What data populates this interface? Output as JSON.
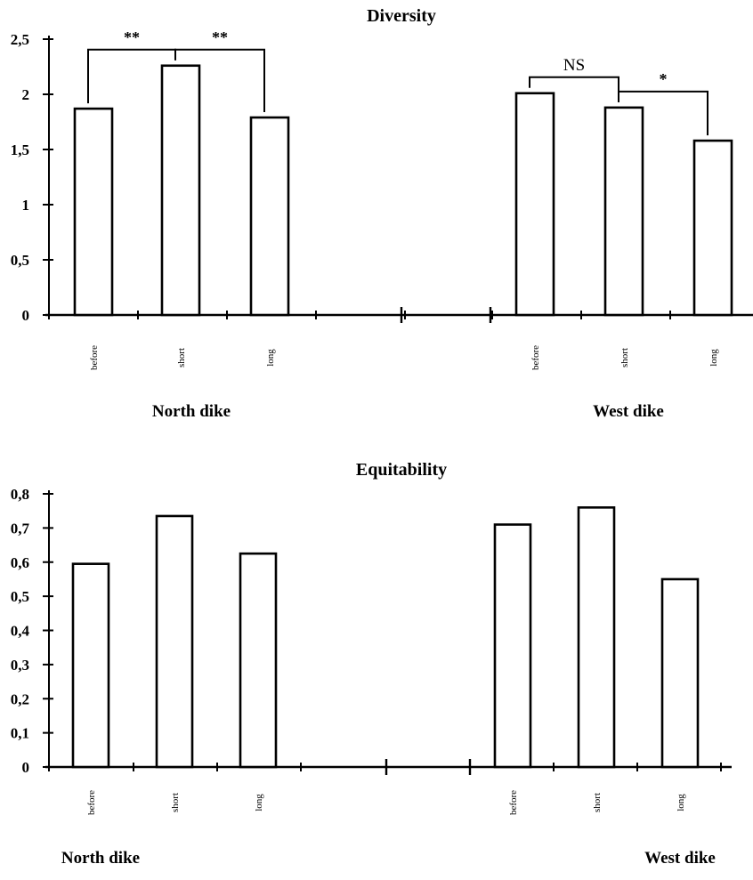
{
  "chart_data": [
    {
      "type": "bar",
      "title": "Diversity",
      "ylim": [
        0,
        2.5
      ],
      "yticks": [
        "0",
        "0,5",
        "1",
        "1,5",
        "2",
        "2,5"
      ],
      "groups": [
        {
          "name": "North dike",
          "categories": [
            "before",
            "short",
            "long"
          ],
          "values": [
            1.87,
            2.26,
            1.79
          ]
        },
        {
          "name": "West dike",
          "categories": [
            "before",
            "short",
            "long"
          ],
          "values": [
            2.01,
            1.88,
            1.58
          ]
        }
      ],
      "significance": [
        {
          "group": 0,
          "from": 0,
          "to": 1,
          "label": "**"
        },
        {
          "group": 0,
          "from": 1,
          "to": 2,
          "label": "**"
        },
        {
          "group": 1,
          "from": 0,
          "to": 1,
          "label": "NS"
        },
        {
          "group": 1,
          "from": 1,
          "to": 2,
          "label": "*"
        }
      ]
    },
    {
      "type": "bar",
      "title": "Equitability",
      "ylim": [
        0,
        0.8
      ],
      "yticks": [
        "0",
        "0,1",
        "0,2",
        "0,3",
        "0,4",
        "0,5",
        "0,6",
        "0,7",
        "0,8"
      ],
      "groups": [
        {
          "name": "North dike",
          "categories": [
            "before",
            "short",
            "long"
          ],
          "values": [
            0.595,
            0.735,
            0.625
          ]
        },
        {
          "name": "West dike",
          "categories": [
            "before",
            "short",
            "long"
          ],
          "values": [
            0.71,
            0.76,
            0.55
          ]
        }
      ]
    }
  ]
}
